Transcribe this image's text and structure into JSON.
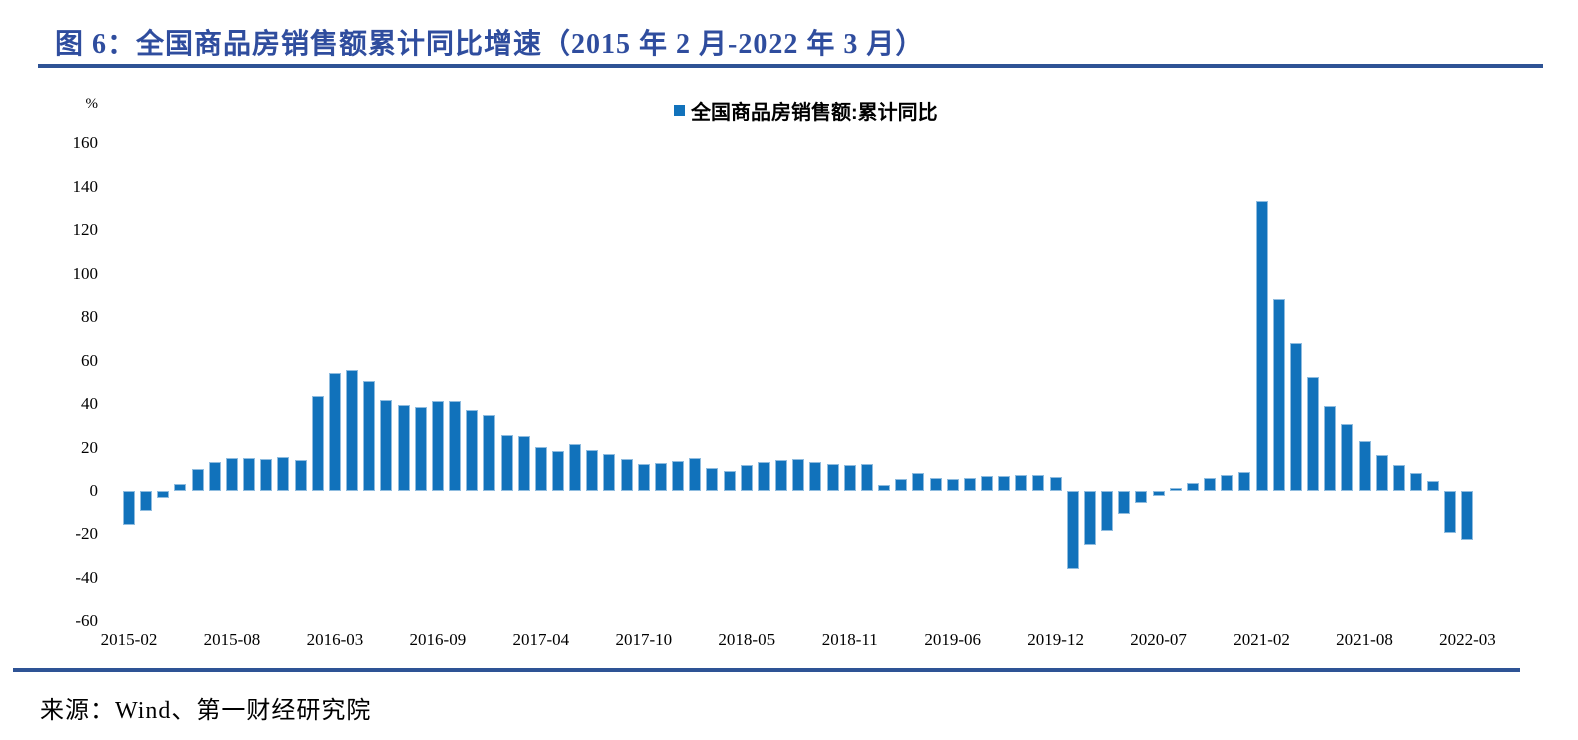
{
  "title": "图 6：全国商品房销售额累计同比增速（2015 年 2 月-2022 年 3 月）",
  "legend": {
    "label": "全国商品房销售额:累计同比",
    "marker_color": "#1172BB"
  },
  "source": "来源：Wind、第一财经研究院",
  "colors": {
    "bar_fill": "#1172BB",
    "bar_edge": "#8FBCDF",
    "title_text": "#2F4D9E",
    "rule": "#2E5395",
    "body_text": "#000000",
    "background": "#FFFFFF"
  },
  "chart_data": {
    "type": "bar",
    "title": "全国商品房销售额累计同比增速",
    "series_name": "全国商品房销售额:累计同比",
    "unit_label": "%",
    "xlabel": "",
    "ylabel": "%",
    "ylim": [
      -60,
      170
    ],
    "grid": false,
    "legend_position": "top-center",
    "bar_color": "#1172BB",
    "categories": [
      "2015-02",
      "2015-03",
      "2015-04",
      "2015-05",
      "2015-06",
      "2015-07",
      "2015-08",
      "2015-09",
      "2015-10",
      "2015-11",
      "2015-12",
      "2016-02",
      "2016-03",
      "2016-04",
      "2016-05",
      "2016-06",
      "2016-07",
      "2016-08",
      "2016-09",
      "2016-10",
      "2016-11",
      "2016-12",
      "2017-02",
      "2017-03",
      "2017-04",
      "2017-05",
      "2017-06",
      "2017-07",
      "2017-08",
      "2017-09",
      "2017-10",
      "2017-11",
      "2017-12",
      "2018-02",
      "2018-03",
      "2018-04",
      "2018-05",
      "2018-06",
      "2018-07",
      "2018-08",
      "2018-09",
      "2018-10",
      "2018-11",
      "2018-12",
      "2019-02",
      "2019-03",
      "2019-04",
      "2019-05",
      "2019-06",
      "2019-07",
      "2019-08",
      "2019-09",
      "2019-10",
      "2019-11",
      "2019-12",
      "2020-02",
      "2020-03",
      "2020-04",
      "2020-05",
      "2020-06",
      "2020-07",
      "2020-08",
      "2020-09",
      "2020-10",
      "2020-11",
      "2020-12",
      "2021-02",
      "2021-03",
      "2021-04",
      "2021-05",
      "2021-06",
      "2021-07",
      "2021-08",
      "2021-09",
      "2021-10",
      "2021-11",
      "2021-12",
      "2022-02",
      "2022-03"
    ],
    "values": [
      -15.8,
      -9.3,
      -3.1,
      3.1,
      10.0,
      13.4,
      15.3,
      15.3,
      14.9,
      15.6,
      14.4,
      43.6,
      54.1,
      55.9,
      50.7,
      42.1,
      39.8,
      38.7,
      41.3,
      41.2,
      37.5,
      34.8,
      26.0,
      25.1,
      20.1,
      18.6,
      21.5,
      18.9,
      17.2,
      14.6,
      12.6,
      12.7,
      13.7,
      15.3,
      10.4,
      9.0,
      11.8,
      13.2,
      14.4,
      14.5,
      13.3,
      12.5,
      12.1,
      12.2,
      2.8,
      5.6,
      8.1,
      6.1,
      5.6,
      6.2,
      6.7,
      7.1,
      7.3,
      7.3,
      6.5,
      -35.9,
      -24.7,
      -18.6,
      -10.6,
      -5.4,
      -2.1,
      1.6,
      3.7,
      5.8,
      7.2,
      8.7,
      133.4,
      88.5,
      68.2,
      52.4,
      38.9,
      30.7,
      22.8,
      16.6,
      11.8,
      8.5,
      4.8,
      -19.3,
      -22.7
    ],
    "y_ticks": [
      160,
      140,
      120,
      100,
      80,
      60,
      40,
      20,
      0,
      -20,
      -40,
      -60
    ],
    "x_tick_indices": [
      0,
      6,
      12,
      18,
      24,
      30,
      36,
      42,
      48,
      54,
      60,
      66,
      72,
      78
    ],
    "x_tick_labels": [
      "2015-02",
      "2015-08",
      "2016-03",
      "2016-09",
      "2017-04",
      "2017-10",
      "2018-05",
      "2018-11",
      "2019-06",
      "2019-12",
      "2020-07",
      "2021-02",
      "2021-08",
      "2022-03"
    ]
  }
}
